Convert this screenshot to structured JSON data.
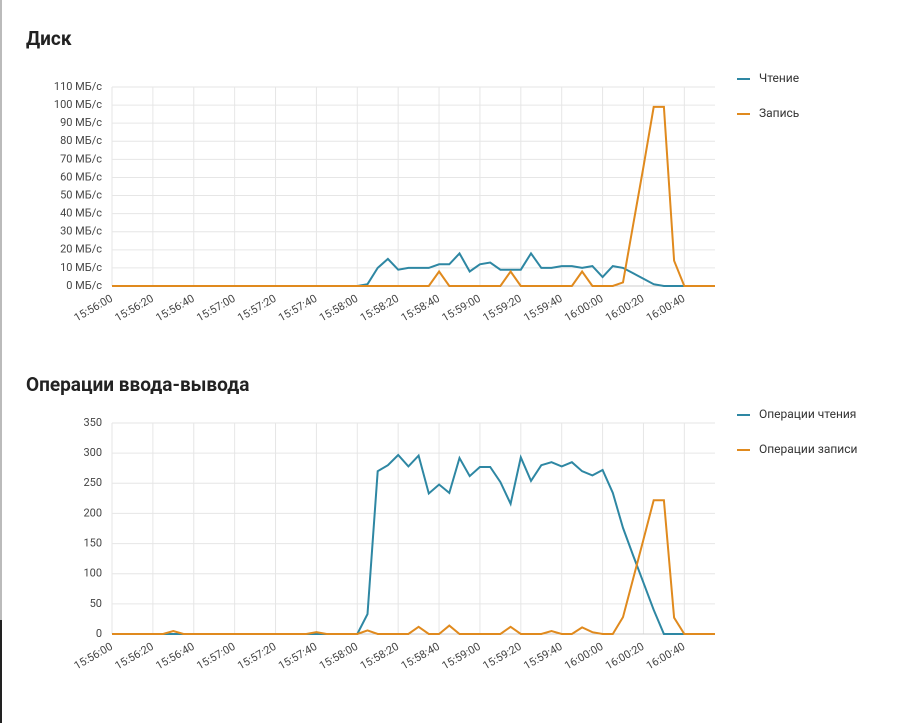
{
  "chart_data": [
    {
      "type": "line",
      "title": "Диск",
      "legend": "right",
      "x": [
        "15:56:00",
        "15:56:05",
        "15:56:10",
        "15:56:15",
        "15:56:20",
        "15:56:25",
        "15:56:30",
        "15:56:35",
        "15:56:40",
        "15:56:45",
        "15:56:50",
        "15:56:55",
        "15:57:00",
        "15:57:05",
        "15:57:10",
        "15:57:15",
        "15:57:20",
        "15:57:25",
        "15:57:30",
        "15:57:35",
        "15:57:40",
        "15:57:45",
        "15:57:50",
        "15:57:55",
        "15:58:00",
        "15:58:05",
        "15:58:10",
        "15:58:15",
        "15:58:20",
        "15:58:25",
        "15:58:30",
        "15:58:35",
        "15:58:40",
        "15:58:45",
        "15:58:50",
        "15:58:55",
        "15:59:00",
        "15:59:05",
        "15:59:10",
        "15:59:15",
        "15:59:20",
        "15:59:25",
        "15:59:30",
        "15:59:35",
        "15:59:40",
        "15:59:45",
        "15:59:50",
        "15:59:55",
        "16:00:00",
        "16:00:05",
        "16:00:10",
        "16:00:15",
        "16:00:20",
        "16:00:25",
        "16:00:30",
        "16:00:35",
        "16:00:40",
        "16:00:45",
        "16:00:50",
        "16:00:55"
      ],
      "series": [
        {
          "name": "Чтение",
          "color": "#2e87a3",
          "values": [
            0,
            0,
            0,
            0,
            0,
            0,
            0,
            0,
            0,
            0,
            0,
            0,
            0,
            0,
            0,
            0,
            0,
            0,
            0,
            0,
            0,
            0,
            0,
            0,
            0,
            1,
            10,
            15,
            9,
            10,
            10,
            10,
            12,
            12,
            18,
            8,
            12,
            13,
            9,
            9,
            9,
            18,
            10,
            10,
            11,
            11,
            10,
            11,
            5,
            11,
            10,
            7,
            4,
            1,
            0,
            0,
            0,
            0,
            0,
            0
          ]
        },
        {
          "name": "Запись",
          "color": "#e08a1e",
          "values": [
            0,
            0,
            0,
            0,
            0,
            0,
            0,
            0,
            0,
            0,
            0,
            0,
            0,
            0,
            0,
            0,
            0,
            0,
            0,
            0,
            0,
            0,
            0,
            0,
            0,
            0,
            0,
            0,
            0,
            0,
            0,
            0,
            8,
            0,
            0,
            0,
            0,
            0,
            0,
            8,
            0,
            0,
            0,
            0,
            0,
            0,
            8,
            0,
            0,
            0,
            2,
            34,
            66,
            99,
            99,
            14,
            0,
            0,
            0,
            0
          ]
        }
      ],
      "xlim": [
        "15:56:00",
        "16:00:55"
      ],
      "xticks": [
        "15:56:00",
        "15:56:20",
        "15:56:40",
        "15:57:00",
        "15:57:20",
        "15:57:40",
        "15:58:00",
        "15:58:20",
        "15:58:40",
        "15:59:00",
        "15:59:20",
        "15:59:40",
        "16:00:00",
        "16:00:20",
        "16:00:40"
      ],
      "ylim": [
        0,
        110
      ],
      "yticks": [
        {
          "value": 0,
          "label": "0 МБ/с"
        },
        {
          "value": 10,
          "label": "10 МБ/с"
        },
        {
          "value": 20,
          "label": "20 МБ/с"
        },
        {
          "value": 30,
          "label": "30 МБ/с"
        },
        {
          "value": 40,
          "label": "40 МБ/с"
        },
        {
          "value": 50,
          "label": "50 МБ/с"
        },
        {
          "value": 60,
          "label": "60 МБ/с"
        },
        {
          "value": 70,
          "label": "70 МБ/с"
        },
        {
          "value": 80,
          "label": "80 МБ/с"
        },
        {
          "value": 90,
          "label": "90 МБ/с"
        },
        {
          "value": 100,
          "label": "100 МБ/с"
        },
        {
          "value": 110,
          "label": "110 МБ/с"
        }
      ],
      "grid": true
    },
    {
      "type": "line",
      "title": "Операции ввода-вывода",
      "legend": "right",
      "x": [
        "15:56:00",
        "15:56:05",
        "15:56:10",
        "15:56:15",
        "15:56:20",
        "15:56:25",
        "15:56:30",
        "15:56:35",
        "15:56:40",
        "15:56:45",
        "15:56:50",
        "15:56:55",
        "15:57:00",
        "15:57:05",
        "15:57:10",
        "15:57:15",
        "15:57:20",
        "15:57:25",
        "15:57:30",
        "15:57:35",
        "15:57:40",
        "15:57:45",
        "15:57:50",
        "15:57:55",
        "15:58:00",
        "15:58:05",
        "15:58:10",
        "15:58:15",
        "15:58:20",
        "15:58:25",
        "15:58:30",
        "15:58:35",
        "15:58:40",
        "15:58:45",
        "15:58:50",
        "15:58:55",
        "15:59:00",
        "15:59:05",
        "15:59:10",
        "15:59:15",
        "15:59:20",
        "15:59:25",
        "15:59:30",
        "15:59:35",
        "15:59:40",
        "15:59:45",
        "15:59:50",
        "15:59:55",
        "16:00:00",
        "16:00:05",
        "16:00:10",
        "16:00:15",
        "16:00:20",
        "16:00:25",
        "16:00:30",
        "16:00:35",
        "16:00:40",
        "16:00:45",
        "16:00:50",
        "16:00:55"
      ],
      "series": [
        {
          "name": "Операции чтения",
          "color": "#2e87a3",
          "values": [
            0,
            0,
            0,
            0,
            0,
            0,
            0,
            0,
            0,
            0,
            0,
            0,
            0,
            0,
            0,
            0,
            0,
            0,
            0,
            0,
            0,
            0,
            0,
            0,
            0,
            33,
            270,
            280,
            297,
            278,
            296,
            233,
            248,
            234,
            292,
            262,
            277,
            277,
            252,
            216,
            293,
            254,
            280,
            285,
            278,
            285,
            270,
            263,
            272,
            234,
            176,
            130,
            85,
            40,
            0,
            0,
            0,
            0,
            0,
            0
          ]
        },
        {
          "name": "Операции записи",
          "color": "#e08a1e",
          "values": [
            0,
            0,
            0,
            0,
            0,
            0,
            5,
            0,
            0,
            0,
            0,
            0,
            0,
            0,
            0,
            0,
            0,
            0,
            0,
            0,
            3,
            0,
            0,
            0,
            0,
            6,
            0,
            0,
            0,
            0,
            12,
            0,
            0,
            14,
            0,
            0,
            0,
            0,
            0,
            12,
            0,
            0,
            0,
            5,
            0,
            0,
            11,
            3,
            0,
            0,
            28,
            92,
            157,
            222,
            222,
            27,
            0,
            0,
            0,
            0
          ]
        }
      ],
      "xlim": [
        "15:56:00",
        "16:00:55"
      ],
      "xticks": [
        "15:56:00",
        "15:56:20",
        "15:56:40",
        "15:57:00",
        "15:57:20",
        "15:57:40",
        "15:58:00",
        "15:58:20",
        "15:58:40",
        "15:59:00",
        "15:59:20",
        "15:59:40",
        "16:00:00",
        "16:00:20",
        "16:00:40"
      ],
      "ylim": [
        0,
        350
      ],
      "yticks": [
        0,
        50,
        100,
        150,
        200,
        250,
        300,
        350
      ],
      "grid": true
    }
  ]
}
